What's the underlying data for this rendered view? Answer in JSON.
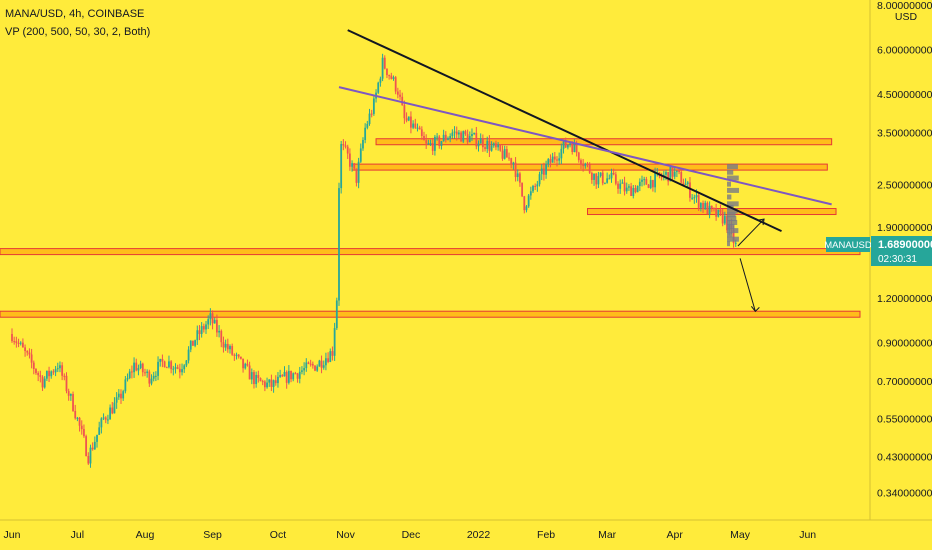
{
  "header": {
    "symbol_line": "MANA/USD, 4h, COINBASE",
    "indicator_line": "VP (200, 500, 50, 30, 2, Both)"
  },
  "currency_label": "USD",
  "chart_data": {
    "type": "line",
    "title": "MANA/USD, 4h, COINBASE",
    "x_axis": {
      "tick_labels": [
        "Jun",
        "Jul",
        "Aug",
        "Sep",
        "Oct",
        "Nov",
        "Dec",
        "2022",
        "Feb",
        "Mar",
        "Apr",
        "May",
        "Jun"
      ]
    },
    "y_axis": {
      "scale": "log",
      "ylim": [
        0.3,
        8.0
      ],
      "tick_values": [
        8.0,
        6.0,
        4.5,
        3.5,
        2.5,
        1.9,
        1.2,
        0.9,
        0.7,
        0.55,
        0.43,
        0.34
      ],
      "tick_labels": [
        "8.00000000",
        "6.00000000",
        "4.50000000",
        "3.50000000",
        "2.50000000",
        "1.90000000",
        "1.20000000",
        "0.90000000",
        "0.70000000",
        "0.55000000",
        "0.43000000",
        "0.34000000"
      ]
    },
    "series": [
      {
        "x": [
          "2021-06-01",
          "2021-06-08",
          "2021-06-15",
          "2021-06-22",
          "2021-06-29",
          "2021-07-06",
          "2021-07-13",
          "2021-07-20",
          "2021-07-27",
          "2021-08-03",
          "2021-08-10",
          "2021-08-17",
          "2021-08-24",
          "2021-08-31",
          "2021-09-07",
          "2021-09-14",
          "2021-09-21",
          "2021-09-28",
          "2021-10-05",
          "2021-10-12",
          "2021-10-19",
          "2021-10-26",
          "2021-10-28",
          "2021-10-29",
          "2021-10-30",
          "2021-11-02",
          "2021-11-06",
          "2021-11-10",
          "2021-11-14",
          "2021-11-18",
          "2021-11-22",
          "2021-11-25",
          "2021-11-28",
          "2021-12-03",
          "2021-12-08",
          "2021-12-14",
          "2021-12-20",
          "2021-12-27",
          "2022-01-03",
          "2022-01-10",
          "2022-01-17",
          "2022-01-22",
          "2022-01-26",
          "2022-02-01",
          "2022-02-07",
          "2022-02-12",
          "2022-02-18",
          "2022-02-24",
          "2022-03-03",
          "2022-03-10",
          "2022-03-17",
          "2022-03-24",
          "2022-03-31",
          "2022-04-04",
          "2022-04-10",
          "2022-04-17",
          "2022-04-24",
          "2022-04-29"
        ],
        "y": [
          0.95,
          0.82,
          0.7,
          0.78,
          0.6,
          0.43,
          0.55,
          0.62,
          0.78,
          0.72,
          0.8,
          0.76,
          0.92,
          1.05,
          0.88,
          0.78,
          0.7,
          0.68,
          0.72,
          0.75,
          0.78,
          0.85,
          1.2,
          2.5,
          3.2,
          3.0,
          2.6,
          3.6,
          4.2,
          5.5,
          5.0,
          4.6,
          3.8,
          3.6,
          3.2,
          3.3,
          3.5,
          3.4,
          3.3,
          3.1,
          2.9,
          2.2,
          2.4,
          2.8,
          3.1,
          3.3,
          2.9,
          2.6,
          2.6,
          2.4,
          2.5,
          2.6,
          2.7,
          2.6,
          2.3,
          2.1,
          2.0,
          1.68
        ]
      }
    ],
    "last_price": "1.68900000",
    "last_price_label": "MANAUSD",
    "countdown": "02:30:31",
    "horizontal_levels": [
      3.3,
      2.8,
      2.1,
      1.62,
      1.08
    ],
    "trendlines": [
      {
        "color": "#131722",
        "from": [
          "2021-11-02",
          6.8
        ],
        "to": [
          "2022-05-20",
          1.85
        ]
      },
      {
        "color": "#7e57c2",
        "from": [
          "2021-10-29",
          4.7
        ],
        "to": [
          "2022-06-12",
          2.2
        ]
      }
    ],
    "grid": false,
    "legend": "top-left"
  }
}
